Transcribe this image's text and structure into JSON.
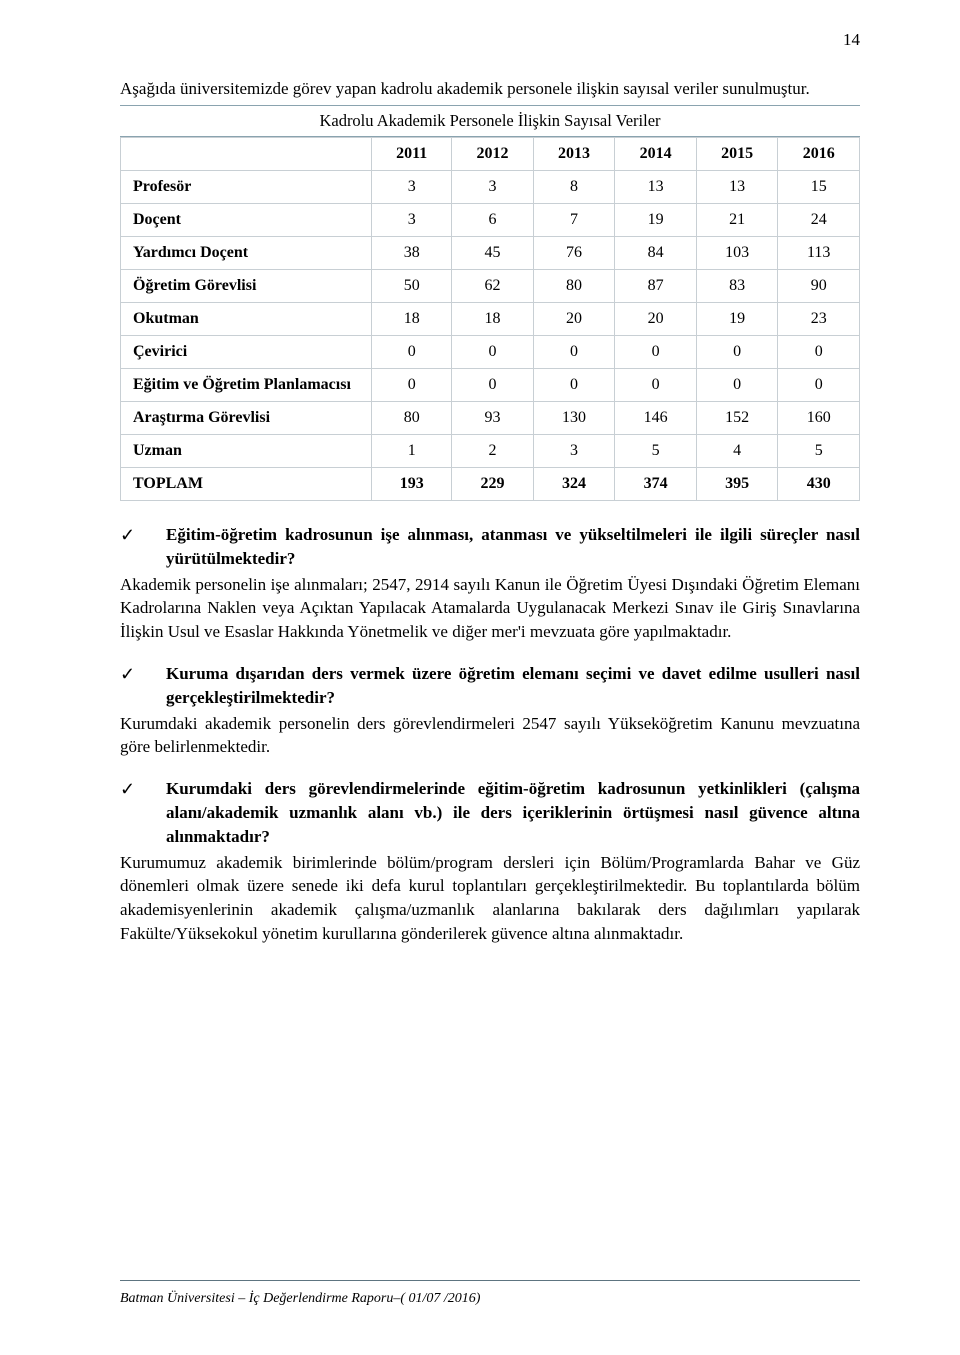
{
  "page_number": "14",
  "intro_text": "Aşağıda üniversitemizde görev yapan kadrolu akademik personele ilişkin sayısal veriler sunulmuştur.",
  "table": {
    "title": "Kadrolu Akademik Personele İlişkin Sayısal Veriler",
    "columns": [
      "",
      "2011",
      "2012",
      "2013",
      "2014",
      "2015",
      "2016"
    ],
    "rows": [
      {
        "label": "Profesör",
        "cells": [
          "3",
          "3",
          "8",
          "13",
          "13",
          "15"
        ],
        "total": false
      },
      {
        "label": "Doçent",
        "cells": [
          "3",
          "6",
          "7",
          "19",
          "21",
          "24"
        ],
        "total": false
      },
      {
        "label": "Yardımcı Doçent",
        "cells": [
          "38",
          "45",
          "76",
          "84",
          "103",
          "113"
        ],
        "total": false
      },
      {
        "label": "Öğretim Görevlisi",
        "cells": [
          "50",
          "62",
          "80",
          "87",
          "83",
          "90"
        ],
        "total": false
      },
      {
        "label": "Okutman",
        "cells": [
          "18",
          "18",
          "20",
          "20",
          "19",
          "23"
        ],
        "total": false
      },
      {
        "label": "Çevirici",
        "cells": [
          "0",
          "0",
          "0",
          "0",
          "0",
          "0"
        ],
        "total": false
      },
      {
        "label": "Eğitim ve Öğretim Planlamacısı",
        "cells": [
          "0",
          "0",
          "0",
          "0",
          "0",
          "0"
        ],
        "total": false
      },
      {
        "label": "Araştırma Görevlisi",
        "cells": [
          "80",
          "93",
          "130",
          "146",
          "152",
          "160"
        ],
        "total": false
      },
      {
        "label": "Uzman",
        "cells": [
          "1",
          "2",
          "3",
          "5",
          "4",
          "5"
        ],
        "total": false
      },
      {
        "label": "TOPLAM",
        "cells": [
          "193",
          "229",
          "324",
          "374",
          "395",
          "430"
        ],
        "total": true
      }
    ],
    "border_color": "#c8cfd4",
    "first_col_width_pct": 34
  },
  "sections": [
    {
      "question": "Eğitim-öğretim kadrosunun işe alınması, atanması ve yükseltilmeleri ile ilgili süreçler nasıl yürütülmektedir?",
      "answer": "Akademik personelin işe alınmaları; 2547, 2914 sayılı Kanun ile Öğretim Üyesi Dışındaki Öğretim Elemanı Kadrolarına Naklen veya Açıktan Yapılacak Atamalarda Uygulanacak Merkezi Sınav ile Giriş Sınavlarına İlişkin Usul ve Esaslar Hakkında Yönetmelik ve diğer mer'i mevzuata göre yapılmaktadır."
    },
    {
      "question": "Kuruma dışarıdan ders vermek üzere öğretim elemanı seçimi ve davet edilme usulleri nasıl gerçekleştirilmektedir?",
      "answer": "Kurumdaki akademik personelin ders görevlendirmeleri 2547 sayılı Yükseköğretim Kanunu mevzuatına göre belirlenmektedir."
    },
    {
      "question": "Kurumdaki ders görevlendirmelerinde eğitim-öğretim kadrosunun yetkinlikleri (çalışma alanı/akademik uzmanlık alanı vb.) ile ders içeriklerinin örtüşmesi nasıl güvence altına alınmaktadır?",
      "answer": "Kurumumuz akademik birimlerinde bölüm/program dersleri için Bölüm/Programlarda Bahar ve Güz dönemleri olmak üzere senede iki defa kurul toplantıları gerçekleştirilmektedir. Bu toplantılarda bölüm akademisyenlerinin akademik çalışma/uzmanlık alanlarına bakılarak ders dağılımları yapılarak Fakülte/Yüksekokul yönetim kurullarına gönderilerek güvence altına alınmaktadır."
    }
  ],
  "checkmark_glyph": "✓",
  "footer_text": "Batman Üniversitesi – İç Değerlendirme Raporu–( 01/07 /2016)"
}
